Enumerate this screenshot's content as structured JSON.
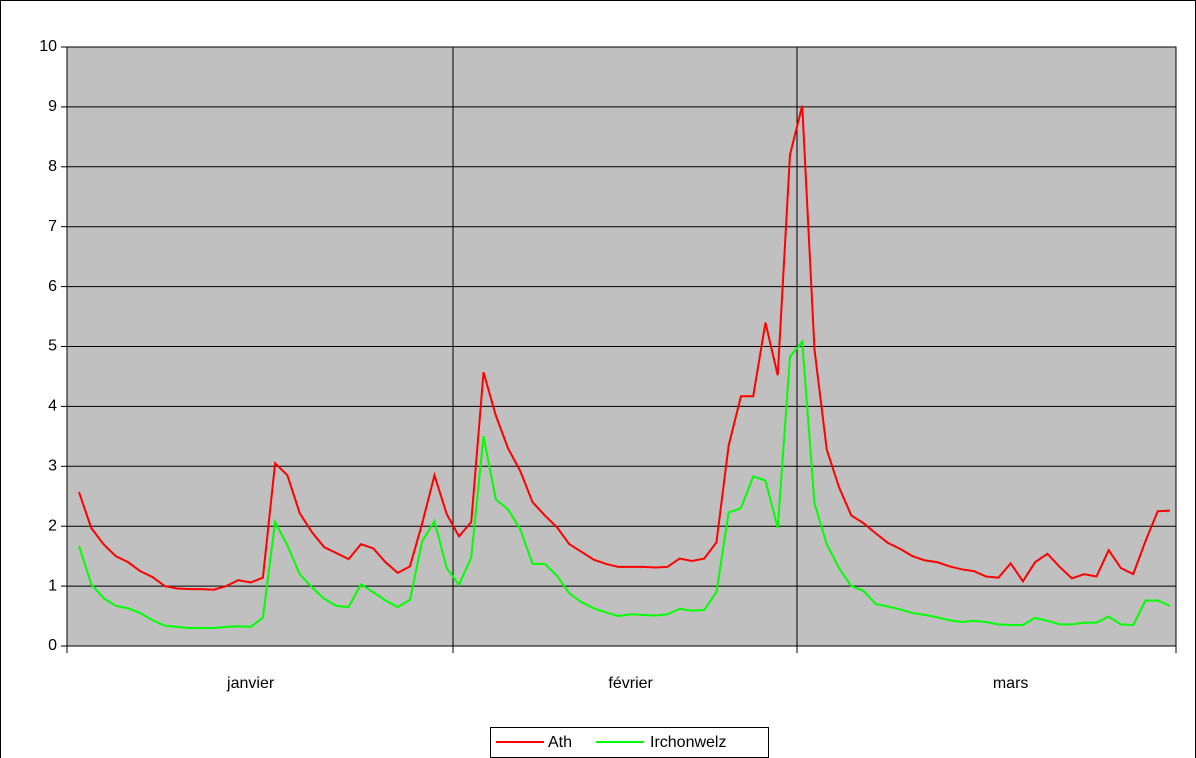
{
  "chart_data": {
    "type": "line",
    "categories": [
      null,
      null,
      null,
      null,
      null,
      null,
      null,
      null,
      null,
      null,
      null,
      null,
      null,
      null,
      "janvier",
      null,
      null,
      null,
      null,
      null,
      null,
      null,
      null,
      null,
      null,
      null,
      null,
      null,
      null,
      null,
      null,
      null,
      null,
      null,
      null,
      null,
      null,
      null,
      null,
      null,
      null,
      null,
      null,
      null,
      null,
      "février",
      null,
      null,
      null,
      null,
      null,
      null,
      null,
      null,
      null,
      null,
      null,
      null,
      null,
      null,
      null,
      null,
      null,
      null,
      null,
      null,
      null,
      null,
      null,
      null,
      null,
      null,
      null,
      null,
      null,
      null,
      "mars",
      null,
      null,
      null,
      null,
      null,
      null,
      null,
      null,
      null,
      null,
      null,
      null,
      null
    ],
    "series": [
      {
        "name": "Ath",
        "color": "#ff0000",
        "values": [
          2.57,
          1.97,
          1.7,
          1.5,
          1.4,
          1.25,
          1.15,
          1.0,
          0.96,
          0.95,
          0.95,
          0.94,
          1.0,
          1.1,
          1.06,
          1.14,
          3.05,
          2.85,
          2.22,
          1.9,
          1.65,
          1.55,
          1.45,
          1.7,
          1.63,
          1.4,
          1.22,
          1.33,
          2.05,
          2.85,
          2.2,
          1.83,
          2.07,
          4.57,
          3.85,
          3.3,
          2.92,
          2.4,
          2.18,
          1.98,
          1.7,
          1.57,
          1.44,
          1.37,
          1.32,
          1.32,
          1.32,
          1.31,
          1.32,
          1.46,
          1.42,
          1.46,
          1.73,
          3.35,
          4.17,
          4.17,
          5.4,
          4.52,
          8.2,
          9.02,
          4.95,
          3.28,
          2.65,
          2.18,
          2.05,
          1.88,
          1.72,
          1.62,
          1.5,
          1.43,
          1.4,
          1.33,
          1.28,
          1.25,
          1.16,
          1.14,
          1.38,
          1.08,
          1.4,
          1.54,
          1.32,
          1.13,
          1.2,
          1.16,
          1.6,
          1.3,
          1.2,
          1.75,
          2.25,
          2.26
        ]
      },
      {
        "name": "Irchonwelz",
        "color": "#00ff00",
        "values": [
          1.67,
          1.03,
          0.8,
          0.67,
          0.63,
          0.55,
          0.43,
          0.34,
          0.32,
          0.3,
          0.3,
          0.3,
          0.32,
          0.33,
          0.32,
          0.47,
          2.07,
          1.68,
          1.2,
          0.98,
          0.79,
          0.67,
          0.65,
          1.03,
          0.9,
          0.76,
          0.65,
          0.77,
          1.75,
          2.08,
          1.3,
          1.02,
          1.48,
          3.5,
          2.45,
          2.28,
          1.95,
          1.37,
          1.37,
          1.17,
          0.88,
          0.73,
          0.63,
          0.56,
          0.5,
          0.53,
          0.52,
          0.51,
          0.53,
          0.62,
          0.59,
          0.6,
          0.9,
          2.23,
          2.3,
          2.83,
          2.76,
          1.97,
          4.83,
          5.08,
          2.38,
          1.7,
          1.3,
          1.0,
          0.92,
          0.7,
          0.66,
          0.61,
          0.55,
          0.52,
          0.48,
          0.43,
          0.4,
          0.42,
          0.4,
          0.36,
          0.35,
          0.35,
          0.47,
          0.42,
          0.36,
          0.36,
          0.39,
          0.39,
          0.49,
          0.36,
          0.35,
          0.76,
          0.76,
          0.67
        ]
      }
    ],
    "ylim": [
      0,
      10
    ],
    "yticks": [
      0,
      1,
      2,
      3,
      4,
      5,
      6,
      7,
      8,
      9,
      10
    ],
    "grid": true,
    "legend": "bottom"
  }
}
